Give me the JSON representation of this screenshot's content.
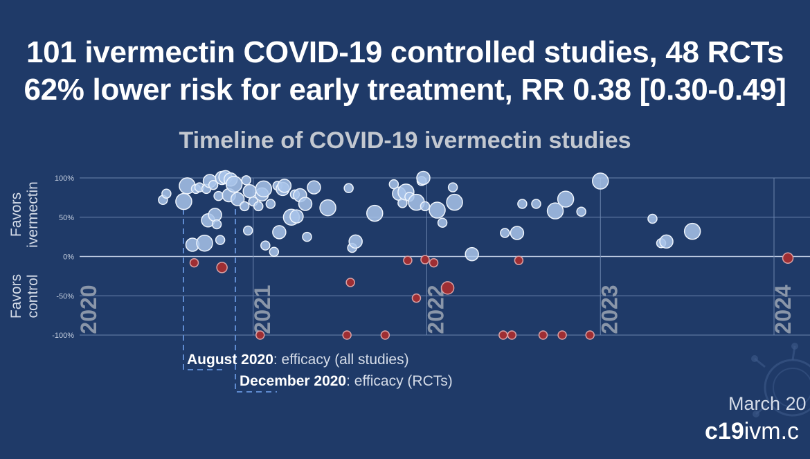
{
  "headline": {
    "line1": "101 ivermectin COVID-19 controlled studies, 48 RCTs",
    "line2": "62% lower risk for early treatment, RR 0.38 [0.30-0.49]"
  },
  "chart_data": {
    "type": "scatter",
    "title": "Timeline of COVID-19 ivermectin studies",
    "ylabel_top": [
      "Favors",
      "ivermectin"
    ],
    "ylabel_bottom": [
      "Favors",
      "control"
    ],
    "yticks": [
      "100%",
      "50%",
      "0%",
      "-50%",
      "-100%"
    ],
    "ylim": [
      -100,
      100
    ],
    "xlim": [
      2020.0,
      2024.2
    ],
    "year_labels": [
      {
        "x": 2020.0,
        "label": "2020"
      },
      {
        "x": 2021.0,
        "label": "2021"
      },
      {
        "x": 2022.0,
        "label": "2022"
      },
      {
        "x": 2023.0,
        "label": "2023"
      },
      {
        "x": 2024.0,
        "label": "2024"
      }
    ],
    "points": [
      {
        "x": 2020.48,
        "y": 72,
        "s": 1
      },
      {
        "x": 2020.5,
        "y": 80,
        "s": 1
      },
      {
        "x": 2020.6,
        "y": 70,
        "s": 3
      },
      {
        "x": 2020.62,
        "y": 90,
        "s": 3
      },
      {
        "x": 2020.65,
        "y": 15,
        "s": 2
      },
      {
        "x": 2020.67,
        "y": 86,
        "s": 1
      },
      {
        "x": 2020.69,
        "y": 88,
        "s": 1
      },
      {
        "x": 2020.72,
        "y": 17,
        "s": 3
      },
      {
        "x": 2020.73,
        "y": 86,
        "s": 1
      },
      {
        "x": 2020.74,
        "y": 46,
        "s": 2
      },
      {
        "x": 2020.75,
        "y": 96,
        "s": 2
      },
      {
        "x": 2020.77,
        "y": 91,
        "s": 1
      },
      {
        "x": 2020.78,
        "y": 53,
        "s": 2
      },
      {
        "x": 2020.79,
        "y": 41,
        "s": 1
      },
      {
        "x": 2020.8,
        "y": 77,
        "s": 1
      },
      {
        "x": 2020.81,
        "y": 21,
        "s": 1
      },
      {
        "x": 2020.82,
        "y": 100,
        "s": 2
      },
      {
        "x": 2020.84,
        "y": 101,
        "s": 2
      },
      {
        "x": 2020.86,
        "y": 78,
        "s": 2
      },
      {
        "x": 2020.87,
        "y": 98,
        "s": 2
      },
      {
        "x": 2020.89,
        "y": 92,
        "s": 3
      },
      {
        "x": 2020.91,
        "y": 73,
        "s": 2
      },
      {
        "x": 2020.95,
        "y": 64,
        "s": 1
      },
      {
        "x": 2020.96,
        "y": 97,
        "s": 1
      },
      {
        "x": 2020.97,
        "y": 33,
        "s": 1
      },
      {
        "x": 2020.98,
        "y": 83,
        "s": 2
      },
      {
        "x": 2021.0,
        "y": 70,
        "s": 1
      },
      {
        "x": 2021.03,
        "y": 64,
        "s": 1
      },
      {
        "x": 2021.05,
        "y": 79,
        "s": 2
      },
      {
        "x": 2021.06,
        "y": 86,
        "s": 3
      },
      {
        "x": 2021.07,
        "y": 14,
        "s": 1
      },
      {
        "x": 2021.1,
        "y": 67,
        "s": 1
      },
      {
        "x": 2021.12,
        "y": 6,
        "s": 1
      },
      {
        "x": 2021.14,
        "y": 90,
        "s": 1
      },
      {
        "x": 2021.15,
        "y": 31,
        "s": 2
      },
      {
        "x": 2021.17,
        "y": 86,
        "s": 2
      },
      {
        "x": 2021.18,
        "y": 90,
        "s": 2
      },
      {
        "x": 2021.22,
        "y": 50,
        "s": 3
      },
      {
        "x": 2021.24,
        "y": 79,
        "s": 1
      },
      {
        "x": 2021.25,
        "y": 51,
        "s": 2
      },
      {
        "x": 2021.27,
        "y": 78,
        "s": 2
      },
      {
        "x": 2021.3,
        "y": 67,
        "s": 2
      },
      {
        "x": 2021.31,
        "y": 25,
        "s": 1
      },
      {
        "x": 2021.35,
        "y": 88,
        "s": 2
      },
      {
        "x": 2021.43,
        "y": 62,
        "s": 3
      },
      {
        "x": 2021.55,
        "y": 87,
        "s": 1
      },
      {
        "x": 2021.57,
        "y": 11,
        "s": 1
      },
      {
        "x": 2021.59,
        "y": 19,
        "s": 2
      },
      {
        "x": 2021.7,
        "y": 55,
        "s": 3
      },
      {
        "x": 2021.81,
        "y": 92,
        "s": 1
      },
      {
        "x": 2021.84,
        "y": 80,
        "s": 2
      },
      {
        "x": 2021.86,
        "y": 68,
        "s": 1
      },
      {
        "x": 2021.88,
        "y": 82,
        "s": 3
      },
      {
        "x": 2021.9,
        "y": 76,
        "s": 1
      },
      {
        "x": 2021.94,
        "y": 69,
        "s": 3
      },
      {
        "x": 2021.97,
        "y": 96,
        "s": 1
      },
      {
        "x": 2021.99,
        "y": 64,
        "s": 1
      },
      {
        "x": 2021.98,
        "y": 100,
        "s": 2
      },
      {
        "x": 2022.06,
        "y": 59,
        "s": 3
      },
      {
        "x": 2022.09,
        "y": 43,
        "s": 1
      },
      {
        "x": 2022.15,
        "y": 88,
        "s": 1
      },
      {
        "x": 2022.16,
        "y": 69,
        "s": 3
      },
      {
        "x": 2022.26,
        "y": 3,
        "s": 2
      },
      {
        "x": 2022.45,
        "y": 30,
        "s": 1
      },
      {
        "x": 2022.52,
        "y": 30,
        "s": 2
      },
      {
        "x": 2022.55,
        "y": 67,
        "s": 1
      },
      {
        "x": 2022.63,
        "y": 67,
        "s": 1
      },
      {
        "x": 2022.74,
        "y": 58,
        "s": 3
      },
      {
        "x": 2022.8,
        "y": 73,
        "s": 3
      },
      {
        "x": 2022.89,
        "y": 57,
        "s": 1
      },
      {
        "x": 2023.0,
        "y": 96,
        "s": 3
      },
      {
        "x": 2023.3,
        "y": 48,
        "s": 1
      },
      {
        "x": 2023.35,
        "y": 17,
        "s": 1
      },
      {
        "x": 2023.38,
        "y": 19,
        "s": 2
      },
      {
        "x": 2023.53,
        "y": 32,
        "s": 3
      },
      {
        "x": 2020.66,
        "y": -8,
        "s": 1,
        "neg": true
      },
      {
        "x": 2020.82,
        "y": -14,
        "s": 2,
        "neg": true
      },
      {
        "x": 2021.04,
        "y": -100,
        "s": 1,
        "neg": true
      },
      {
        "x": 2021.54,
        "y": -100,
        "s": 1,
        "neg": true
      },
      {
        "x": 2021.56,
        "y": -33,
        "s": 1,
        "neg": true
      },
      {
        "x": 2021.76,
        "y": -100,
        "s": 1,
        "neg": true
      },
      {
        "x": 2021.89,
        "y": -5,
        "s": 1,
        "neg": true
      },
      {
        "x": 2021.94,
        "y": -53,
        "s": 1,
        "neg": true
      },
      {
        "x": 2021.99,
        "y": -4,
        "s": 1,
        "neg": true
      },
      {
        "x": 2022.04,
        "y": -8,
        "s": 1,
        "neg": true
      },
      {
        "x": 2022.12,
        "y": -40,
        "s": 3,
        "neg": true
      },
      {
        "x": 2022.44,
        "y": -100,
        "s": 1,
        "neg": true
      },
      {
        "x": 2022.49,
        "y": -100,
        "s": 1,
        "neg": true
      },
      {
        "x": 2022.53,
        "y": -5,
        "s": 1,
        "neg": true
      },
      {
        "x": 2022.67,
        "y": -100,
        "s": 1,
        "neg": true
      },
      {
        "x": 2022.78,
        "y": -100,
        "s": 1,
        "neg": true
      },
      {
        "x": 2022.94,
        "y": -100,
        "s": 1,
        "neg": true
      },
      {
        "x": 2024.08,
        "y": -2,
        "s": 2,
        "neg": true
      }
    ],
    "annotations": [
      {
        "date": "August 2020",
        "text": ": efficacy (all studies)"
      },
      {
        "date": "December 2020",
        "text": ": efficacy (RCTs)"
      }
    ]
  },
  "footer": {
    "date": "March 20",
    "site_bold": "c19",
    "site_rest": "ivm.c"
  },
  "colors": {
    "background": "#1f3a68",
    "positive_fill": "#a9c4ea",
    "negative_fill": "#9e2e33",
    "gridline": "#6b84ad"
  }
}
